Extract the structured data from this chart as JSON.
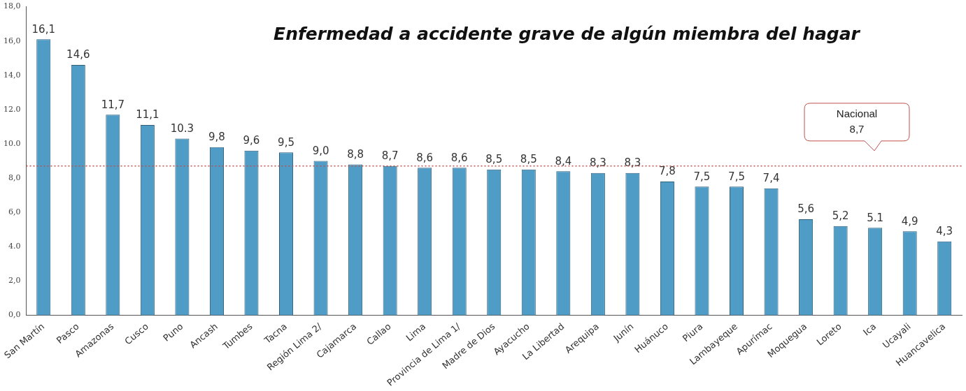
{
  "chart_data": {
    "type": "bar",
    "title": "Enfermedad a accidente grave de algún miembra del hagar",
    "categories": [
      "San Martín",
      "Pasco",
      "Amazonas",
      "Cusco",
      "Puno",
      "Ancash",
      "Tumbes",
      "Tacna",
      "Región Lima 2/",
      "Cajamarca",
      "Callao",
      "Lima",
      "Provincia de Lima 1/",
      "Madre de Dios",
      "Ayacucho",
      "La Libertad",
      "Arequipa",
      "Junín",
      "Huánuco",
      "Piura",
      "Lambayeque",
      "Apurímac",
      "Moquegua",
      "Loreto",
      "Ica",
      "Ucayali",
      "Huancavelica"
    ],
    "values": [
      16.1,
      14.6,
      11.7,
      11.1,
      10.3,
      9.8,
      9.6,
      9.5,
      9.0,
      8.8,
      8.7,
      8.6,
      8.6,
      8.5,
      8.5,
      8.4,
      8.3,
      8.3,
      7.8,
      7.5,
      7.5,
      7.4,
      5.6,
      5.2,
      5.1,
      4.9,
      4.3
    ],
    "value_labels": [
      "16,1",
      "14,6",
      "11,7",
      "11,1",
      "10.3",
      "9,8",
      "9,6",
      "9,5",
      "9,0",
      "8,8",
      "8,7",
      "8,6",
      "8,6",
      "8,5",
      "8,5",
      "8,4",
      "8,3",
      "8,3",
      "7,8",
      "7,5",
      "7,5",
      "7,4",
      "5,6",
      "5,2",
      "5.1",
      "4,9",
      "4,3"
    ],
    "color": "#4f9dc6",
    "ylim": [
      0,
      18
    ],
    "yticks": [
      {
        "value": 0,
        "label": "0,0"
      },
      {
        "value": 2,
        "label": "2,0"
      },
      {
        "value": 4,
        "label": "4.0"
      },
      {
        "value": 6,
        "label": "6,0"
      },
      {
        "value": 8,
        "label": "8,0"
      },
      {
        "value": 10,
        "label": "10.0"
      },
      {
        "value": 12,
        "label": "12.0"
      },
      {
        "value": 14,
        "label": "14,0"
      },
      {
        "value": 16,
        "label": "16,0"
      },
      {
        "value": 18,
        "label": "18,0"
      }
    ],
    "ref_lines": [
      {
        "axis": "y",
        "value": 8.7,
        "label": "Nacional 8,7",
        "color": "#c0504d",
        "line_style": "dotted"
      }
    ],
    "grid": false,
    "legend": false
  }
}
